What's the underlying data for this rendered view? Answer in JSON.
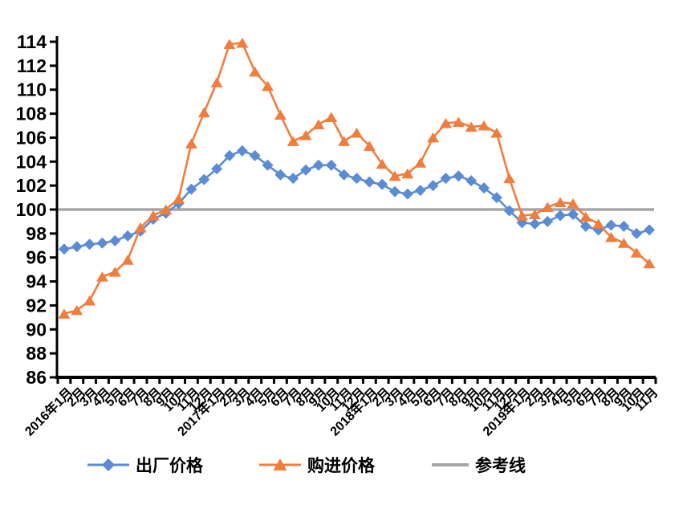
{
  "figure": {
    "background": "#ffffff",
    "title": ""
  },
  "colors": {
    "factory_series": "#5B8CD3",
    "purchase_series": "#F07D3C",
    "reference_line": "#A6A6A6",
    "axis": "#000000",
    "label_text": "#000000"
  },
  "legend": {
    "factory_label": "出厂价格",
    "purchase_label": "购进价格",
    "reference_label": "参考线"
  },
  "chart_data": {
    "type": "line",
    "title": "",
    "xlabel": "",
    "ylabel": "",
    "ylim": [
      86,
      114
    ],
    "ytick_step": 2,
    "grid": false,
    "legend_position": "bottom",
    "x": [
      "2016年1月",
      "2月",
      "3月",
      "4月",
      "5月",
      "6月",
      "7月",
      "8月",
      "9月",
      "10月",
      "11月",
      "12月",
      "2017年1月",
      "2月",
      "3月",
      "4月",
      "5月",
      "6月",
      "7月",
      "8月",
      "9月",
      "10月",
      "11月",
      "12月",
      "2018年1月",
      "2月",
      "3月",
      "4月",
      "5月",
      "6月",
      "7月",
      "8月",
      "9月",
      "10月",
      "11月",
      "12月",
      "2019年1月",
      "2月",
      "3月",
      "4月",
      "5月",
      "6月",
      "7月",
      "8月",
      "9月",
      "10月",
      "11月"
    ],
    "series": [
      {
        "name": "出厂价格",
        "marker": "diamond",
        "color": "#5B8CD3",
        "values": [
          96.7,
          96.9,
          97.1,
          97.2,
          97.4,
          97.8,
          98.2,
          99.2,
          99.7,
          100.5,
          101.7,
          102.5,
          103.4,
          104.5,
          104.9,
          104.5,
          103.7,
          102.9,
          102.6,
          103.3,
          103.7,
          103.7,
          102.9,
          102.6,
          102.3,
          102.1,
          101.5,
          101.3,
          101.6,
          102.0,
          102.6,
          102.8,
          102.4,
          101.8,
          101.0,
          99.9,
          98.9,
          98.8,
          99.0,
          99.5,
          99.6,
          98.6,
          98.3,
          98.7,
          98.6,
          98.0,
          98.3
        ]
      },
      {
        "name": "购进价格",
        "marker": "triangle",
        "color": "#F07D3C",
        "values": [
          91.3,
          91.6,
          92.4,
          94.4,
          94.8,
          95.8,
          98.5,
          99.5,
          100.0,
          100.9,
          105.5,
          108.1,
          110.6,
          113.8,
          113.9,
          111.5,
          110.3,
          107.9,
          105.7,
          106.2,
          107.1,
          107.7,
          105.7,
          106.4,
          105.3,
          103.8,
          102.8,
          103.0,
          103.9,
          106.0,
          107.2,
          107.3,
          106.9,
          107.0,
          106.4,
          102.6,
          99.5,
          99.6,
          100.2,
          100.6,
          100.5,
          99.4,
          98.8,
          97.7,
          97.2,
          96.4,
          95.5
        ]
      },
      {
        "name": "参考线",
        "marker": "none",
        "color": "#A6A6A6",
        "constant": 100
      }
    ]
  }
}
